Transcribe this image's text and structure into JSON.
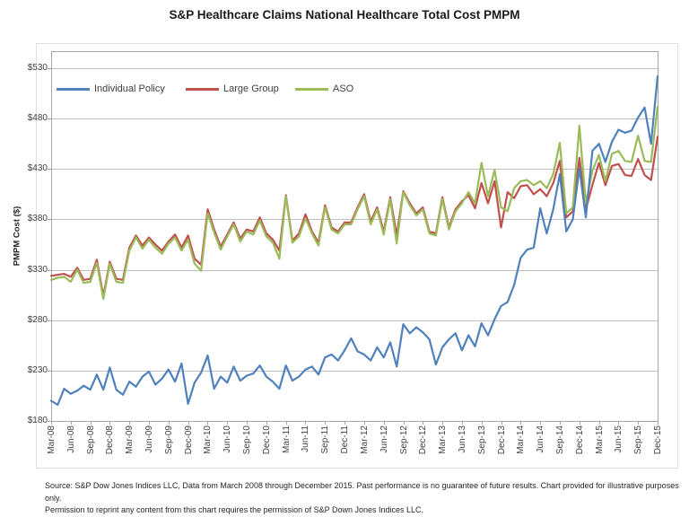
{
  "title": "S&P Healthcare Claims National Healthcare Total Cost PMPM",
  "legend": [
    {
      "label": "Individual Policy",
      "color": "#4F81BD"
    },
    {
      "label": "Large Group",
      "color": "#C0504D"
    },
    {
      "label": "ASO",
      "color": "#9BBB59"
    }
  ],
  "y_axis": {
    "title": "PMPM Cost ($)",
    "tick_labels": [
      "$180",
      "$230",
      "$280",
      "$330",
      "$380",
      "$430",
      "$480",
      "$530"
    ],
    "tick_values": [
      180,
      230,
      280,
      330,
      380,
      430,
      480,
      530
    ]
  },
  "x_axis": {
    "tick_labels": [
      "Mar-08",
      "Jun-08",
      "Sep-08",
      "Dec-08",
      "Mar-09",
      "Jun-09",
      "Sep-09",
      "Dec-09",
      "Mar-10",
      "Jun-10",
      "Sep-10",
      "Dec-10",
      "Mar-11",
      "Jun-11",
      "Sep-11",
      "Dec-11",
      "Mar-12",
      "Jun-12",
      "Sep-12",
      "Dec-12",
      "Mar-13",
      "Jun-13",
      "Sep-13",
      "Dec-13",
      "Mar-14",
      "Jun-14",
      "Sep-14",
      "Dec-14",
      "Mar-15",
      "Jun-15",
      "Sep-15",
      "Dec-15"
    ],
    "tick_month_indices": [
      0,
      3,
      6,
      9,
      12,
      15,
      18,
      21,
      24,
      27,
      30,
      33,
      36,
      39,
      42,
      45,
      48,
      51,
      54,
      57,
      60,
      63,
      66,
      69,
      72,
      75,
      78,
      81,
      84,
      87,
      90,
      93
    ]
  },
  "footer": {
    "line1": "Source: S&P Dow Jones Indices LLC, Data from March 2008 through December 2015. Past performance is no guarantee of future results. Chart provided for illustrative purposes only.",
    "line2": "Permission to reprint  any content from this chart requires the permission of S&P Down Jones Indices LLC."
  },
  "chart_data": {
    "type": "line",
    "title": "S&P Healthcare Claims National Healthcare Total Cost PMPM",
    "xlabel": "",
    "ylabel": "PMPM Cost ($)",
    "ylim": [
      180,
      530
    ],
    "y_step": 50,
    "grid": "horizontal",
    "legend_position": "top-left-inside",
    "x": [
      "Mar-08",
      "Apr-08",
      "May-08",
      "Jun-08",
      "Jul-08",
      "Aug-08",
      "Sep-08",
      "Oct-08",
      "Nov-08",
      "Dec-08",
      "Jan-09",
      "Feb-09",
      "Mar-09",
      "Apr-09",
      "May-09",
      "Jun-09",
      "Jul-09",
      "Aug-09",
      "Sep-09",
      "Oct-09",
      "Nov-09",
      "Dec-09",
      "Jan-10",
      "Feb-10",
      "Mar-10",
      "Apr-10",
      "May-10",
      "Jun-10",
      "Jul-10",
      "Aug-10",
      "Sep-10",
      "Oct-10",
      "Nov-10",
      "Dec-10",
      "Jan-11",
      "Feb-11",
      "Mar-11",
      "Apr-11",
      "May-11",
      "Jun-11",
      "Jul-11",
      "Aug-11",
      "Sep-11",
      "Oct-11",
      "Nov-11",
      "Dec-11",
      "Jan-12",
      "Feb-12",
      "Mar-12",
      "Apr-12",
      "May-12",
      "Jun-12",
      "Jul-12",
      "Aug-12",
      "Sep-12",
      "Oct-12",
      "Nov-12",
      "Dec-12",
      "Jan-13",
      "Feb-13",
      "Mar-13",
      "Apr-13",
      "May-13",
      "Jun-13",
      "Jul-13",
      "Aug-13",
      "Sep-13",
      "Oct-13",
      "Nov-13",
      "Dec-13",
      "Jan-14",
      "Feb-14",
      "Mar-14",
      "Apr-14",
      "May-14",
      "Jun-14",
      "Jul-14",
      "Aug-14",
      "Sep-14",
      "Oct-14",
      "Nov-14",
      "Dec-14",
      "Jan-15",
      "Feb-15",
      "Mar-15",
      "Apr-15",
      "May-15",
      "Jun-15",
      "Jul-15",
      "Aug-15",
      "Sep-15",
      "Oct-15",
      "Nov-15",
      "Dec-15"
    ],
    "series": [
      {
        "name": "Individual Policy",
        "color": "#4F81BD",
        "values": [
          200,
          196,
          212,
          207,
          210,
          215,
          211,
          226,
          211,
          233,
          211,
          206,
          219,
          214,
          224,
          229,
          216,
          222,
          231,
          219,
          237,
          197,
          218,
          228,
          245,
          212,
          224,
          218,
          234,
          220,
          225,
          227,
          235,
          224,
          219,
          212,
          235,
          220,
          224,
          231,
          234,
          226,
          243,
          246,
          240,
          250,
          262,
          249,
          246,
          240,
          253,
          243,
          258,
          234,
          276,
          267,
          273,
          268,
          261,
          236,
          253,
          261,
          267,
          250,
          265,
          254,
          277,
          265,
          281,
          294,
          298,
          315,
          342,
          350,
          352,
          391,
          366,
          390,
          425,
          368,
          380,
          431,
          382,
          448,
          455,
          437,
          457,
          469,
          466,
          468,
          481,
          491,
          455,
          522
        ]
      },
      {
        "name": "Large Group",
        "color": "#C0504D",
        "values": [
          324,
          325,
          326,
          323,
          332,
          320,
          321,
          340,
          304,
          338,
          321,
          320,
          352,
          364,
          354,
          362,
          355,
          349,
          358,
          365,
          352,
          364,
          341,
          335,
          390,
          370,
          353,
          365,
          377,
          361,
          370,
          368,
          382,
          366,
          360,
          349,
          404,
          359,
          366,
          385,
          368,
          357,
          394,
          372,
          368,
          377,
          377,
          392,
          405,
          378,
          392,
          368,
          402,
          364,
          408,
          396,
          386,
          392,
          368,
          366,
          402,
          372,
          390,
          398,
          404,
          391,
          416,
          396,
          418,
          372,
          407,
          401,
          413,
          414,
          405,
          410,
          403,
          416,
          438,
          382,
          388,
          441,
          390,
          414,
          436,
          414,
          433,
          435,
          424,
          423,
          440,
          424,
          419,
          462
        ]
      },
      {
        "name": "ASO",
        "color": "#9BBB59",
        "values": [
          320,
          322,
          323,
          318,
          330,
          317,
          318,
          337,
          301,
          336,
          318,
          317,
          349,
          362,
          351,
          360,
          352,
          346,
          356,
          362,
          349,
          360,
          336,
          329,
          386,
          367,
          350,
          363,
          375,
          358,
          368,
          365,
          379,
          363,
          357,
          341,
          403,
          357,
          363,
          381,
          366,
          354,
          392,
          370,
          366,
          375,
          375,
          390,
          403,
          375,
          390,
          365,
          400,
          356,
          407,
          394,
          384,
          390,
          366,
          364,
          400,
          370,
          388,
          396,
          407,
          396,
          436,
          403,
          429,
          392,
          388,
          411,
          418,
          419,
          414,
          418,
          411,
          425,
          456,
          386,
          392,
          473,
          396,
          428,
          444,
          418,
          445,
          448,
          438,
          437,
          463,
          438,
          437,
          492
        ]
      }
    ]
  }
}
